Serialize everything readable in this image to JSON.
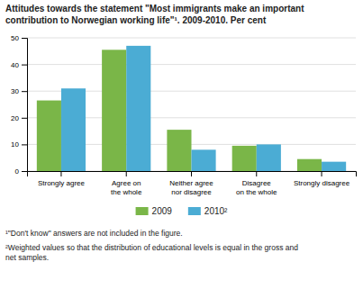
{
  "chart_data": {
    "type": "bar",
    "title": "Attitudes towards the statement \"Most immigrants make an important\ncontribution to Norwegian working life\"¹. 2009-2010. Per cent",
    "categories": [
      "Strongly agree",
      "Agree on\nthe whole",
      "Neither agree\nnor disagree",
      "Disagree\non the whole",
      "Strongly disagree"
    ],
    "series": [
      {
        "name": "2009",
        "color": "#7ab648",
        "values": [
          26.5,
          45.5,
          15.5,
          9.5,
          4.5
        ]
      },
      {
        "name": "2010²",
        "color": "#4bacd4",
        "values": [
          31.0,
          47.0,
          8.0,
          10.0,
          3.5
        ]
      }
    ],
    "ylim": [
      0,
      50
    ],
    "yticks": [
      0,
      10,
      20,
      30,
      40,
      50
    ],
    "grid": true,
    "legend": "bottom",
    "annotations": [
      "¹\"Don't know\" answers are not included in the figure.",
      "²Weighted values so that the distribution of educational levels is equal in the gross and\nnet samples."
    ]
  }
}
